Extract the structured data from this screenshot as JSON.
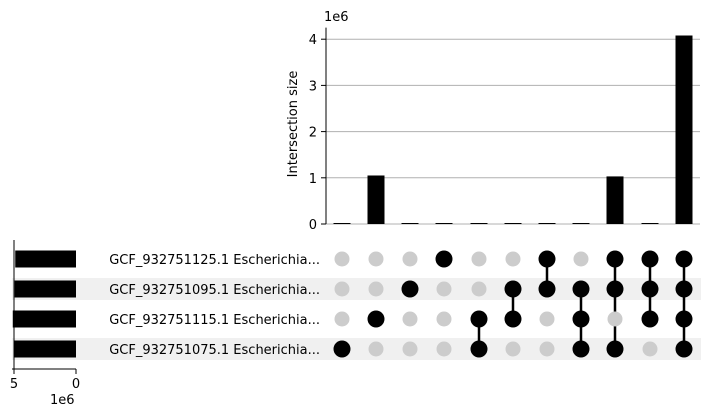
{
  "chart_data": {
    "type": "upset",
    "ylabel": "Intersection size",
    "y_multiplier": "1e6",
    "y_ticks": [
      "0",
      "1",
      "2",
      "3",
      "4"
    ],
    "ylim": [
      0,
      4.25
    ],
    "set_size_multiplier": "1e6",
    "set_size_ticks": [
      "5",
      "0"
    ],
    "set_size_xlim": [
      5,
      0
    ],
    "sets": [
      "GCF_932751125.1 Escherichia...",
      "GCF_932751095.1 Escherichia...",
      "GCF_932751115.1 Escherichia...",
      "GCF_932751075.1 Escherichia..."
    ],
    "set_sizes": [
      4.9,
      4.95,
      5.1,
      5.0
    ],
    "intersections": [
      {
        "members": [
          3
        ],
        "value": 0.02
      },
      {
        "members": [
          2
        ],
        "value": 1.05
      },
      {
        "members": [
          1
        ],
        "value": 0.005
      },
      {
        "members": [
          0
        ],
        "value": 0.005
      },
      {
        "members": [
          2,
          3
        ],
        "value": 0.005
      },
      {
        "members": [
          1,
          2
        ],
        "value": 0.005
      },
      {
        "members": [
          0,
          1
        ],
        "value": 0.005
      },
      {
        "members": [
          1,
          2,
          3
        ],
        "value": 0.005
      },
      {
        "members": [
          0,
          1,
          3
        ],
        "value": 1.03
      },
      {
        "members": [
          0,
          1,
          2
        ],
        "value": 0.005
      },
      {
        "members": [
          0,
          1,
          2,
          3
        ],
        "value": 4.08
      }
    ],
    "colors": {
      "bar": "#000000",
      "dot_active": "#000000",
      "dot_inactive": "#cccccc",
      "stripe": "#f0f0f0",
      "grid": "#b0b0b0"
    }
  }
}
